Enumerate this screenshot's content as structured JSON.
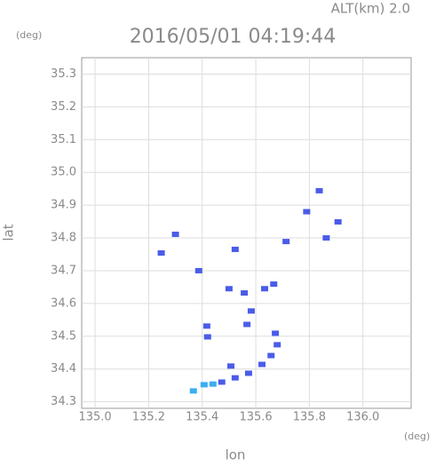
{
  "chart_data": {
    "type": "scatter",
    "title": "2016/05/01 04:19:44",
    "subtitle": "ALT(km) 2.0",
    "y_unit": "(deg)",
    "x_unit": "(deg)",
    "xlabel": "lon",
    "ylabel": "lat",
    "xlim": [
      134.95,
      136.18
    ],
    "ylim": [
      34.28,
      35.35
    ],
    "xticks": [
      {
        "value": 135.0,
        "label": "135.0"
      },
      135.2,
      135.4,
      135.6,
      135.8,
      {
        "value": 136.0,
        "label": "136.0"
      }
    ],
    "yticks": [
      34.3,
      34.4,
      34.5,
      34.6,
      34.7,
      34.8,
      34.9,
      {
        "value": 35.0,
        "label": "35.0"
      },
      35.1,
      35.2,
      35.3
    ],
    "grid": true,
    "series": [
      {
        "color": "#4a5ce8",
        "x": [
          135.837,
          135.79,
          135.907,
          135.863,
          135.713,
          135.3,
          135.247,
          135.523,
          135.387,
          135.667,
          135.5,
          135.557,
          135.633,
          135.583,
          135.567,
          135.417,
          135.42,
          135.673,
          135.68,
          135.657,
          135.623,
          135.507,
          135.573,
          135.523,
          135.473
        ],
        "y": [
          34.944,
          34.88,
          34.849,
          34.8,
          34.789,
          34.811,
          34.754,
          34.765,
          34.7,
          34.659,
          34.645,
          34.632,
          34.645,
          34.577,
          34.536,
          34.531,
          34.498,
          34.509,
          34.474,
          34.441,
          34.414,
          34.409,
          34.387,
          34.373,
          34.36
        ]
      },
      {
        "color": "#3aaef0",
        "x": [
          135.407,
          135.367,
          135.44
        ],
        "y": [
          34.352,
          34.333,
          34.354
        ]
      }
    ]
  }
}
